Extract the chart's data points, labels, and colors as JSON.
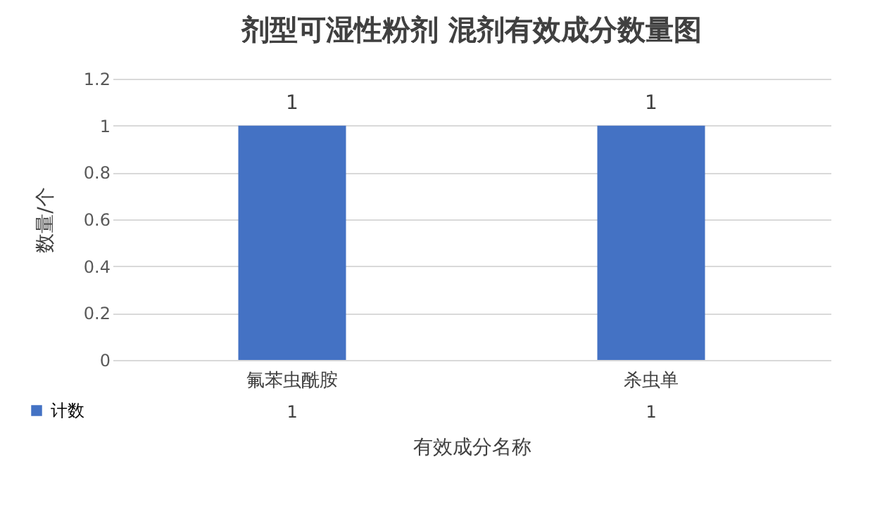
{
  "chart_data": {
    "type": "bar",
    "title": "剂型可湿性粉剂 混剂有效成分数量图",
    "xlabel": "有效成分名称",
    "ylabel": "数量/个",
    "categories": [
      "氟苯虫酰胺",
      "杀虫单"
    ],
    "series": [
      {
        "name": "计数",
        "color": "#4472c4",
        "values": [
          1,
          1
        ],
        "value_labels": [
          "1",
          "1"
        ]
      }
    ],
    "ylim": [
      0,
      1.2
    ],
    "yticks": [
      0,
      0.2,
      0.4,
      0.6,
      0.8,
      1,
      1.2
    ],
    "grid": "y",
    "data_labels": true,
    "legend": "bottom left"
  }
}
